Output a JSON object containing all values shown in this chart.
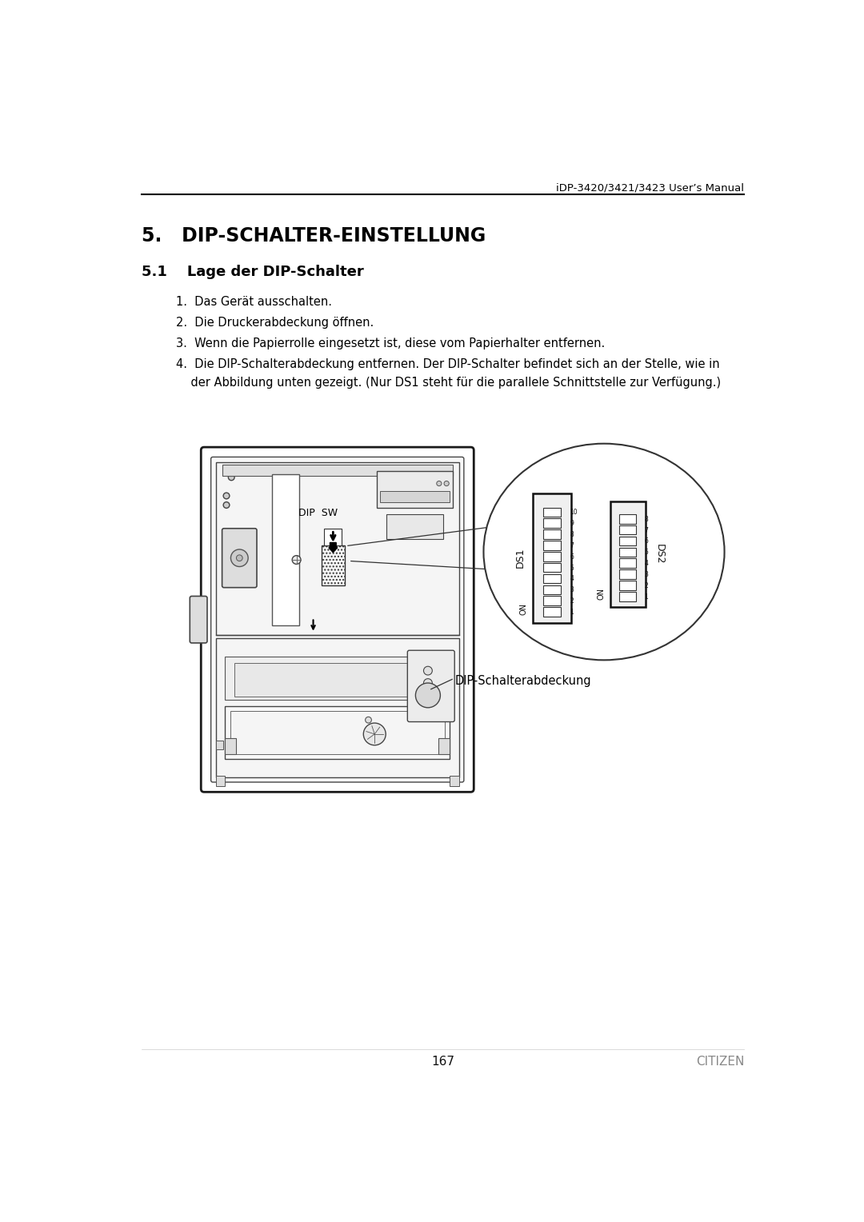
{
  "header_text": "iDP-3420/3421/3423 User’s Manual",
  "section_title": "5.   DIP-SCHALTER-EINSTELLUNG",
  "subsection_title": "5.1    Lage der DIP-Schalter",
  "items": [
    "1.  Das Gerät ausschalten.",
    "2.  Die Druckerabdeckung öffnen.",
    "3.  Wenn die Papierrolle eingesetzt ist, diese vom Papierhalter entfernen.",
    "4.  Die DIP-Schalterabdeckung entfernen. Der DIP-Schalter befindet sich an der Stelle, wie in",
    "    der Abbildung unten gezeigt. (Nur DS1 steht für die parallele Schnittstelle zur Verfügung.)"
  ],
  "diagram_label": "DIP-Schalterabdeckung",
  "dip_label_sw": "DIP  SW",
  "ds1_label": "DS1",
  "ds2_label": "DS2",
  "on_label": "ON",
  "page_number": "167",
  "brand": "CITIZEN",
  "bg_color": "#ffffff",
  "text_color": "#000000",
  "line_color": "#000000"
}
